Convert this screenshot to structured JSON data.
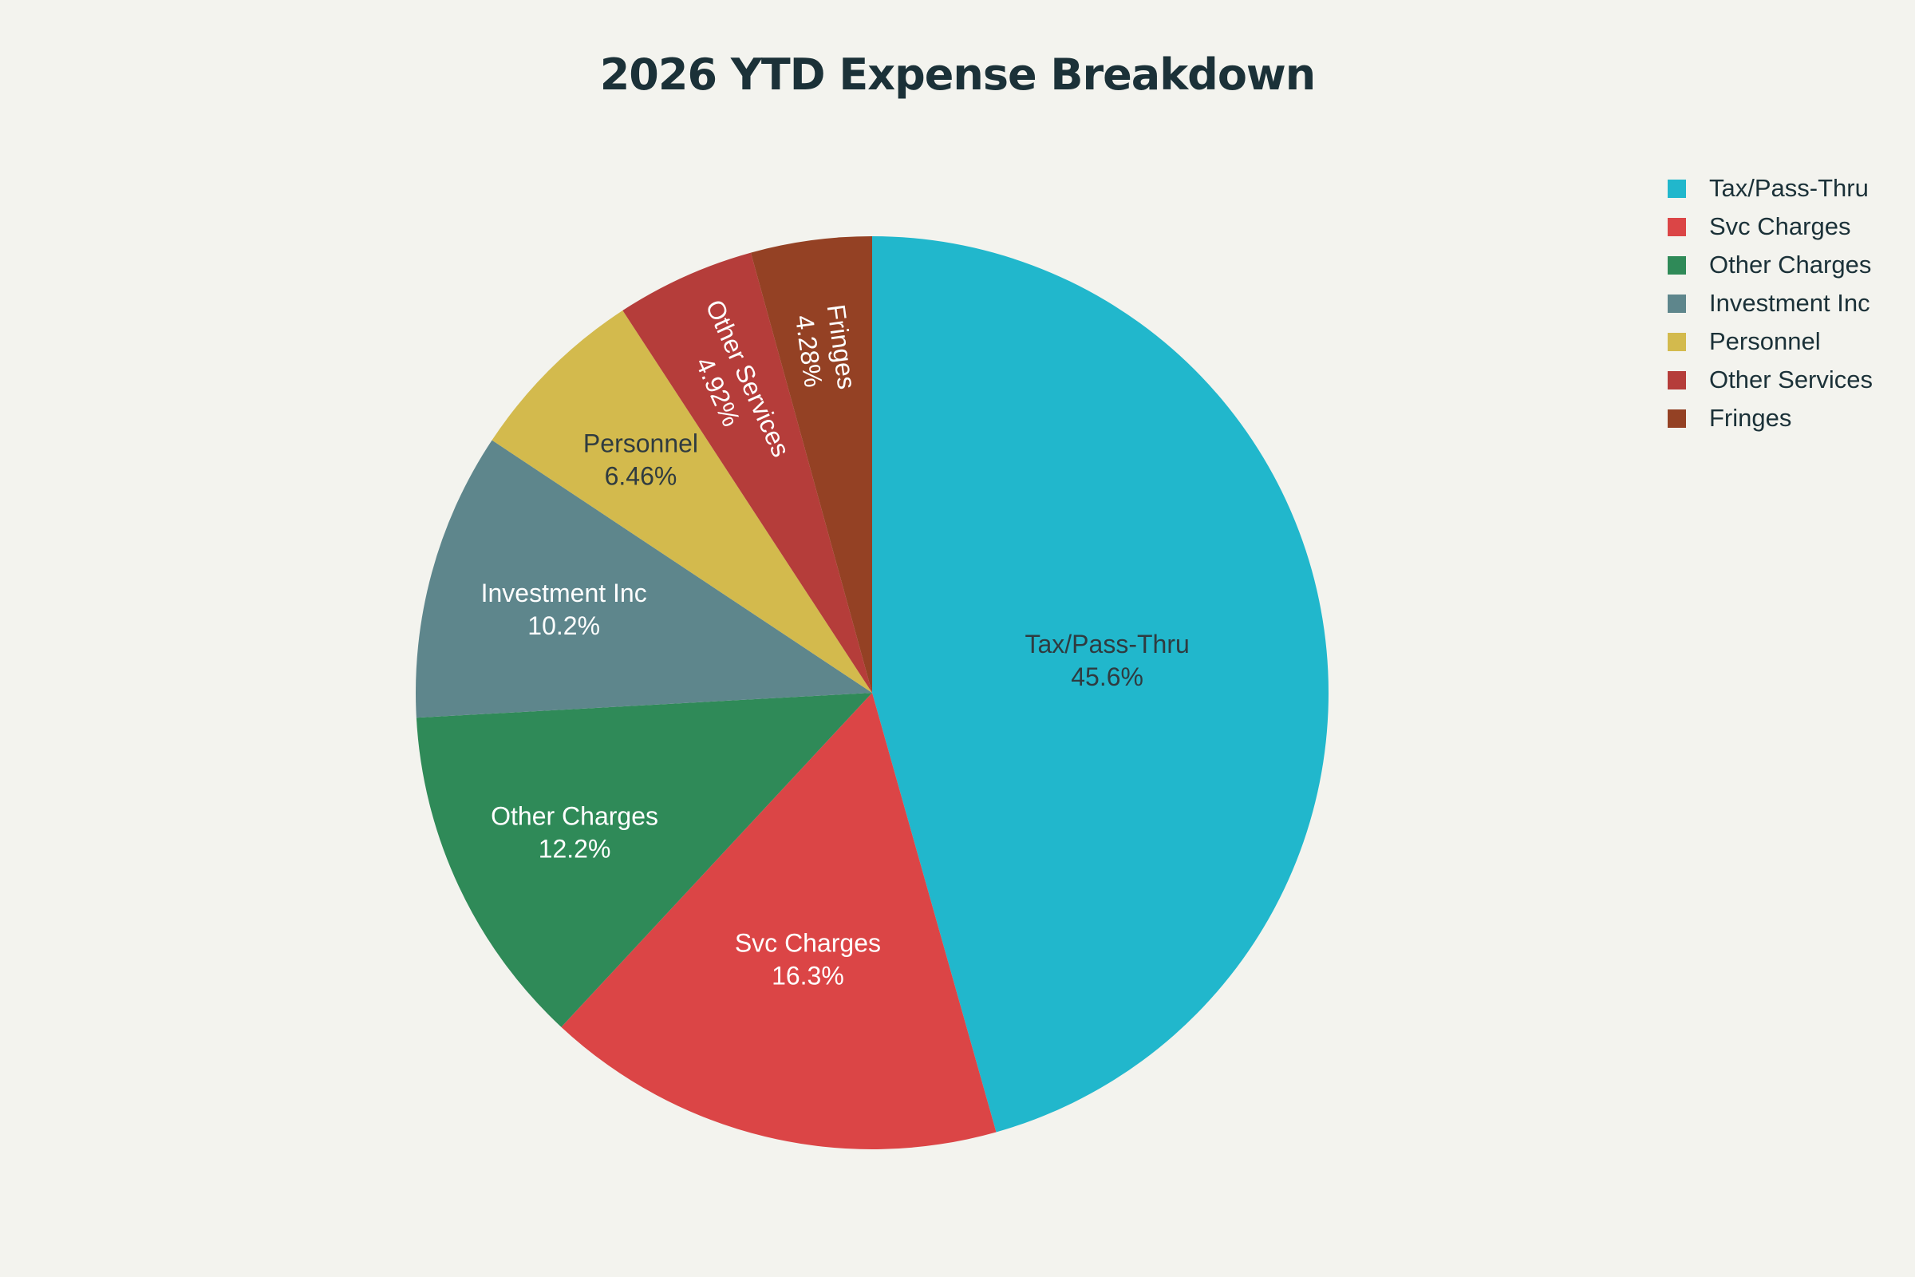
{
  "chart_data": {
    "type": "pie",
    "title": "2026 YTD Expense Breakdown",
    "legend_position": "top-right",
    "slices": [
      {
        "label": "Tax/Pass-Thru",
        "value": 45.6,
        "value_label": "45.6%",
        "color": "#21b7cc",
        "text_color": "#2f3b40"
      },
      {
        "label": "Svc Charges",
        "value": 16.3,
        "value_label": "16.3%",
        "color": "#db4546",
        "text_color": "#ffffff"
      },
      {
        "label": "Other Charges",
        "value": 12.2,
        "value_label": "12.2%",
        "color": "#2f8a58",
        "text_color": "#ffffff"
      },
      {
        "label": "Investment Inc",
        "value": 10.2,
        "value_label": "10.2%",
        "color": "#5e868c",
        "text_color": "#ffffff"
      },
      {
        "label": "Personnel",
        "value": 6.46,
        "value_label": "6.46%",
        "color": "#d3ba4d",
        "text_color": "#2f3b40"
      },
      {
        "label": "Other Services",
        "value": 4.92,
        "value_label": "4.92%",
        "color": "#b53d3a",
        "text_color": "#ffffff"
      },
      {
        "label": "Fringes",
        "value": 4.28,
        "value_label": "4.28%",
        "color": "#944124",
        "text_color": "#ffffff"
      }
    ]
  }
}
